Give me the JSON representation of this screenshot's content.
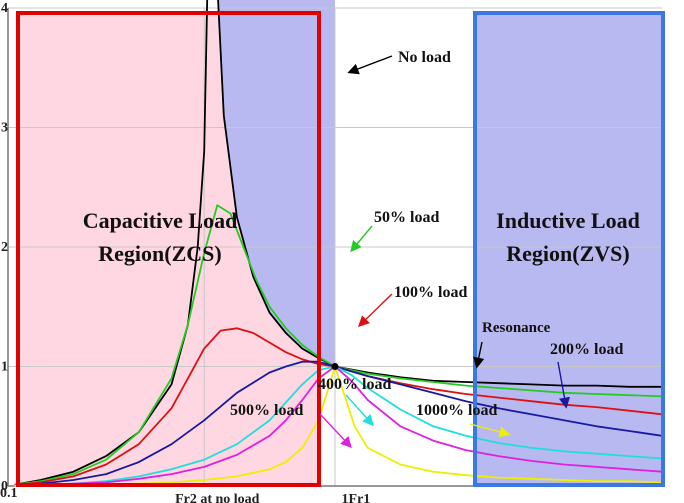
{
  "chart_data": {
    "type": "line",
    "title": "",
    "xlabel": "",
    "ylabel": "",
    "ylim": [
      0,
      4
    ],
    "y_ticks": [
      "0",
      "1",
      "2",
      "3",
      "4"
    ],
    "x_ticks": [
      "0.1",
      "Fr2 at no load",
      "1Fr1"
    ],
    "grid": true,
    "series": [
      {
        "name": "No load",
        "color": "#000000",
        "x": [
          0.02,
          0.1,
          0.2,
          0.3,
          0.4,
          0.5,
          0.55,
          0.58,
          0.6,
          0.61,
          0.64,
          0.66,
          0.7,
          0.75,
          0.8,
          0.85,
          0.9,
          0.95,
          1.0,
          1.1,
          1.2,
          1.3,
          1.4,
          1.5,
          1.6,
          1.7,
          1.8,
          1.9,
          2.0
        ],
        "y": [
          0.01,
          0.05,
          0.12,
          0.25,
          0.45,
          0.85,
          1.35,
          2.0,
          2.8,
          4.2,
          4.2,
          3.1,
          2.25,
          1.75,
          1.45,
          1.28,
          1.15,
          1.07,
          1.0,
          0.95,
          0.91,
          0.88,
          0.87,
          0.86,
          0.85,
          0.84,
          0.84,
          0.83,
          0.83
        ]
      },
      {
        "name": "50% load",
        "color": "#22cc22",
        "x": [
          0.02,
          0.1,
          0.2,
          0.3,
          0.4,
          0.5,
          0.55,
          0.6,
          0.64,
          0.68,
          0.72,
          0.76,
          0.8,
          0.85,
          0.9,
          0.95,
          1.0,
          1.1,
          1.2,
          1.3,
          1.4,
          1.5,
          1.6,
          1.7,
          1.8,
          1.9,
          2.0
        ],
        "y": [
          0.01,
          0.04,
          0.1,
          0.22,
          0.45,
          0.9,
          1.35,
          1.95,
          2.35,
          2.28,
          2.0,
          1.72,
          1.5,
          1.32,
          1.18,
          1.08,
          1.0,
          0.94,
          0.9,
          0.87,
          0.84,
          0.82,
          0.8,
          0.78,
          0.77,
          0.76,
          0.75
        ]
      },
      {
        "name": "100% load",
        "color": "#dd1111",
        "x": [
          0.02,
          0.1,
          0.2,
          0.3,
          0.4,
          0.5,
          0.55,
          0.6,
          0.65,
          0.7,
          0.75,
          0.8,
          0.85,
          0.9,
          0.95,
          1.0,
          1.1,
          1.2,
          1.3,
          1.4,
          1.5,
          1.6,
          1.7,
          1.8,
          1.9,
          2.0
        ],
        "y": [
          0.01,
          0.03,
          0.08,
          0.18,
          0.35,
          0.65,
          0.9,
          1.15,
          1.3,
          1.32,
          1.28,
          1.2,
          1.12,
          1.06,
          1.02,
          1.0,
          0.92,
          0.86,
          0.81,
          0.77,
          0.74,
          0.71,
          0.68,
          0.66,
          0.63,
          0.6
        ]
      },
      {
        "name": "200% load",
        "color": "#1a1aa0",
        "x": [
          0.02,
          0.1,
          0.2,
          0.3,
          0.4,
          0.5,
          0.6,
          0.7,
          0.8,
          0.85,
          0.9,
          0.95,
          1.0,
          1.1,
          1.2,
          1.3,
          1.4,
          1.5,
          1.6,
          1.7,
          1.8,
          1.9,
          2.0
        ],
        "y": [
          0.01,
          0.02,
          0.05,
          0.1,
          0.2,
          0.35,
          0.55,
          0.78,
          0.95,
          1.0,
          1.04,
          1.04,
          1.0,
          0.92,
          0.85,
          0.78,
          0.71,
          0.65,
          0.6,
          0.55,
          0.5,
          0.46,
          0.42
        ]
      },
      {
        "name": "400% load",
        "color": "#22dddd",
        "x": [
          0.02,
          0.1,
          0.2,
          0.3,
          0.4,
          0.5,
          0.6,
          0.7,
          0.8,
          0.85,
          0.9,
          0.95,
          1.0,
          1.05,
          1.1,
          1.2,
          1.3,
          1.4,
          1.5,
          1.6,
          1.7,
          1.8,
          1.9,
          2.0
        ],
        "y": [
          0.01,
          0.01,
          0.02,
          0.04,
          0.08,
          0.14,
          0.22,
          0.35,
          0.55,
          0.7,
          0.85,
          0.97,
          1.0,
          0.93,
          0.82,
          0.64,
          0.5,
          0.42,
          0.36,
          0.32,
          0.29,
          0.27,
          0.25,
          0.23
        ]
      },
      {
        "name": "500% load",
        "color": "#dd22dd",
        "x": [
          0.02,
          0.1,
          0.2,
          0.3,
          0.4,
          0.5,
          0.6,
          0.7,
          0.8,
          0.85,
          0.9,
          0.95,
          1.0,
          1.05,
          1.1,
          1.2,
          1.3,
          1.4,
          1.5,
          1.6,
          1.7,
          1.8,
          1.9,
          2.0
        ],
        "y": [
          0.01,
          0.01,
          0.02,
          0.03,
          0.06,
          0.1,
          0.16,
          0.26,
          0.42,
          0.55,
          0.72,
          0.9,
          1.0,
          0.88,
          0.72,
          0.5,
          0.38,
          0.3,
          0.25,
          0.21,
          0.18,
          0.16,
          0.14,
          0.12
        ]
      },
      {
        "name": "1000% load",
        "color": "#eeee00",
        "x": [
          0.02,
          0.1,
          0.2,
          0.3,
          0.4,
          0.5,
          0.6,
          0.7,
          0.8,
          0.85,
          0.9,
          0.95,
          1.0,
          1.03,
          1.06,
          1.1,
          1.2,
          1.3,
          1.4,
          1.5,
          1.6,
          1.7,
          1.8,
          1.9,
          2.0
        ],
        "y": [
          0.0,
          0.0,
          0.01,
          0.01,
          0.02,
          0.03,
          0.05,
          0.08,
          0.14,
          0.2,
          0.32,
          0.55,
          1.0,
          0.75,
          0.5,
          0.32,
          0.18,
          0.12,
          0.09,
          0.07,
          0.06,
          0.05,
          0.04,
          0.04,
          0.03
        ]
      }
    ],
    "annotations": [
      {
        "text": "No load"
      },
      {
        "text": "50% load"
      },
      {
        "text": "100% load"
      },
      {
        "text": "Resonance"
      },
      {
        "text": "200% load"
      },
      {
        "text": "400% load"
      },
      {
        "text": "500% load"
      },
      {
        "text": "1000% load"
      }
    ],
    "regions": [
      {
        "line1": "Capacitive Load",
        "line2": "Region(ZCS)",
        "border_color": "#e00000",
        "fill_color": "#ffd7e2"
      },
      {
        "line1": "Inductive Load",
        "line2": "Region(ZVS)",
        "border_color": "#3a78e6",
        "fill_color": "#b9b9f2"
      }
    ],
    "shaded_area_color": "#b9b9f2"
  }
}
